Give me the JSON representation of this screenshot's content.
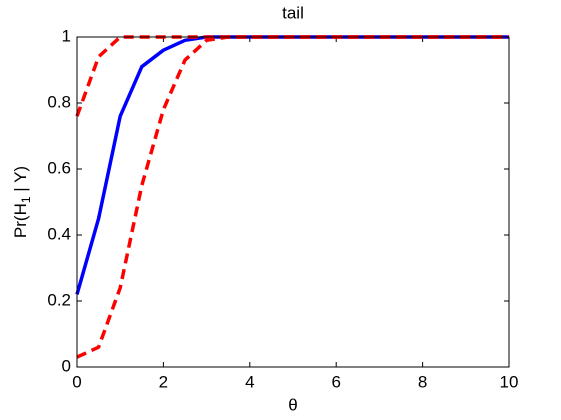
{
  "chart_data": {
    "type": "line",
    "title": "tail",
    "xlabel": "θ",
    "ylabel": [
      "Pr(H",
      "1",
      " | Y)"
    ],
    "x": [
      0,
      0.5,
      1,
      1.5,
      2,
      2.5,
      3,
      3.5,
      4,
      5,
      6,
      7,
      8,
      9,
      10
    ],
    "series": [
      {
        "color": "#0000ff",
        "dash": false,
        "values": [
          0.22,
          0.45,
          0.76,
          0.91,
          0.96,
          0.99,
          1,
          1,
          1,
          1,
          1,
          1,
          1,
          1,
          1
        ]
      },
      {
        "color": "#ff0000",
        "dash": true,
        "values": [
          0.76,
          0.94,
          1,
          1,
          1,
          1,
          1,
          1,
          1,
          1,
          1,
          1,
          1,
          1,
          1
        ]
      },
      {
        "color": "#ff0000",
        "dash": true,
        "values": [
          0.03,
          0.06,
          0.24,
          0.55,
          0.78,
          0.93,
          0.99,
          1,
          1,
          1,
          1,
          1,
          1,
          1,
          1
        ]
      }
    ],
    "xlim": [
      0,
      10
    ],
    "xticks": [
      0,
      2,
      4,
      6,
      8,
      10
    ],
    "ylim": [
      0,
      1
    ],
    "yticks": [
      0,
      0.2,
      0.4,
      0.6,
      0.8,
      1
    ],
    "grid": false
  }
}
